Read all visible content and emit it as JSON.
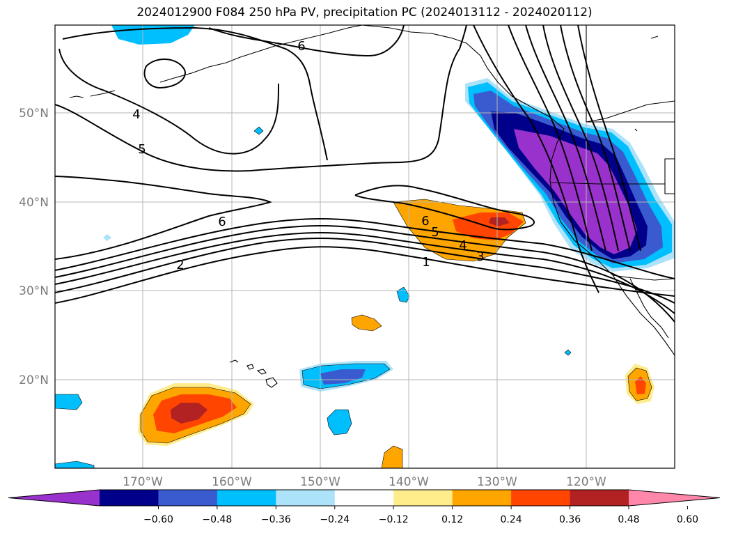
{
  "title": "2024012900 F084 250 hPa PV, precipitation PC (2024013112 - 2024020112)",
  "map": {
    "lat_labels": [
      "50°N",
      "40°N",
      "30°N",
      "20°N"
    ],
    "lon_labels": [
      "170°W",
      "160°W",
      "150°W",
      "140°W",
      "130°W",
      "120°W"
    ],
    "pv_contour_labels": [
      "6",
      "4",
      "5",
      "2",
      "6",
      "5",
      "4",
      "3",
      "1",
      "6"
    ]
  },
  "colorbar": {
    "colors": [
      "#9932cc",
      "#00008b",
      "#3a5bcf",
      "#00bfff",
      "#ade3fa",
      "#ffffff",
      "#ffec8b",
      "#ffa500",
      "#ff4500",
      "#b22222",
      "#ff88aa"
    ],
    "ticks": [
      "−0.60",
      "−0.48",
      "−0.36",
      "−0.24",
      "−0.12",
      "0.12",
      "0.24",
      "0.36",
      "0.48",
      "0.60"
    ]
  }
}
